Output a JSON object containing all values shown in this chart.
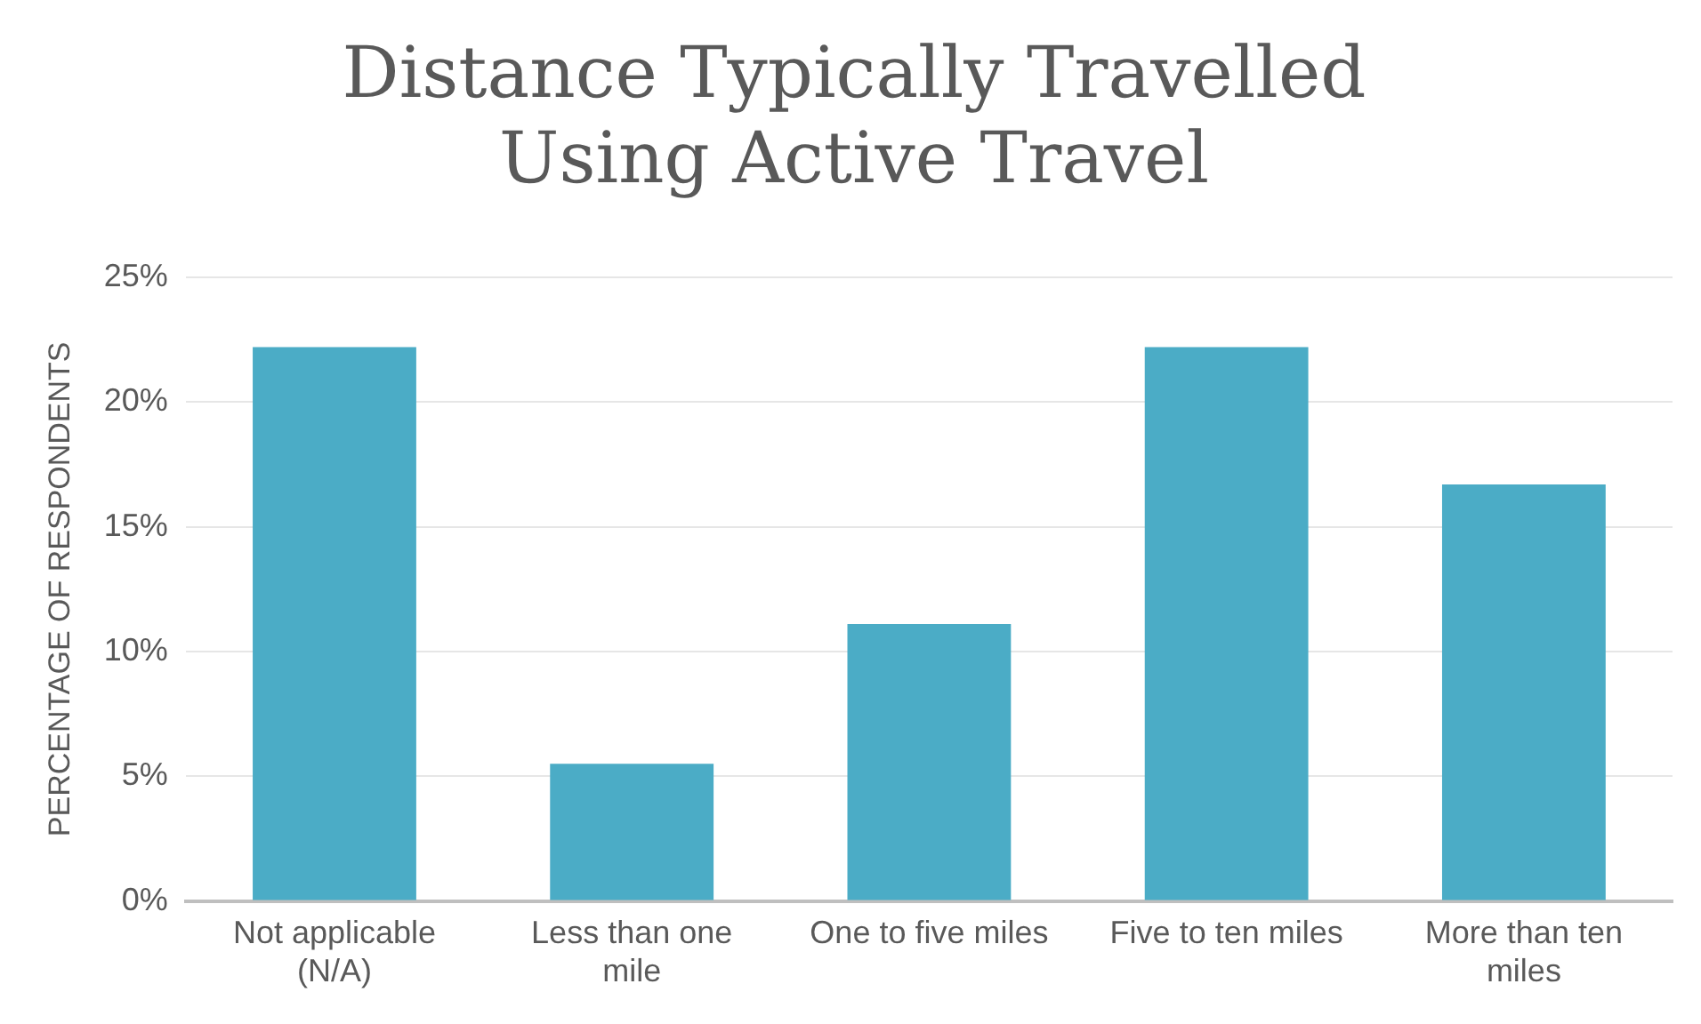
{
  "chart_data": {
    "type": "bar",
    "title": "Distance Typically Travelled Using Active Travel",
    "ylabel": "PERCENTAGE OF RESPONDENTS",
    "categories": [
      "Not applicable (N/A)",
      "Less than one mile",
      "One to five miles",
      "Five to ten miles",
      "More than ten miles"
    ],
    "values": [
      22.2,
      5.5,
      11.1,
      22.2,
      16.7
    ],
    "color": "#4bacc6",
    "ylim": [
      0,
      25
    ],
    "yticks": [
      {
        "value": 0,
        "label": "0%"
      },
      {
        "value": 5,
        "label": "5%"
      },
      {
        "value": 10,
        "label": "10%"
      },
      {
        "value": 15,
        "label": "15%"
      },
      {
        "value": 20,
        "label": "20%"
      },
      {
        "value": 25,
        "label": "25%"
      }
    ],
    "grid": "y",
    "legend": false
  }
}
